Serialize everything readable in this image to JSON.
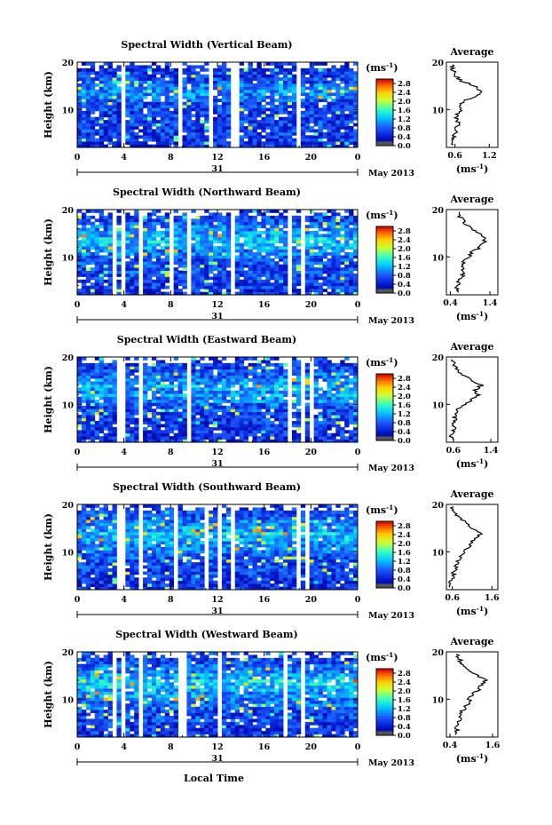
{
  "chart_data": [
    {
      "type": "heatmap",
      "title": "Spectral Width (Vertical Beam)",
      "ylabel": "Height (km)",
      "xlim": [
        0,
        24
      ],
      "ylim": [
        2,
        20
      ],
      "x_ticks": [
        "0",
        "4",
        "8",
        "12",
        "16",
        "20",
        "0"
      ],
      "y_ticks": [
        "10",
        "20"
      ],
      "date_day": "31",
      "date_label": "May 2013",
      "colorbar": {
        "unit": "(ms",
        "unit_exp": "-1",
        "unit_close": ")",
        "ticks": [
          "2.8",
          "2.4",
          "2.0",
          "1.6",
          "1.2",
          "0.8",
          "0.4",
          "0.0"
        ],
        "range": [
          0,
          3.0
        ]
      },
      "gaps": [
        [
          8.6,
          9.0
        ],
        [
          9.3,
          9.5
        ],
        [
          13.3,
          13.7
        ],
        [
          18.6,
          19.0
        ],
        [
          3.7,
          4.2
        ],
        [
          5.5,
          5.7
        ],
        [
          11.3,
          11.5
        ]
      ],
      "average": {
        "title": "Average",
        "xlabel": "(ms",
        "xlabel_exp": "-1",
        "xlabel_close": ")",
        "x_ticks": [
          "0.6",
          "1.2"
        ],
        "xlim": [
          0.45,
          1.35
        ],
        "y_ticks": [
          "10",
          "20"
        ],
        "ylim": [
          2,
          20
        ],
        "heights": [
          3,
          4,
          5,
          6,
          7,
          8,
          9,
          10,
          11,
          12,
          13,
          14,
          15,
          16,
          17,
          18,
          19
        ],
        "values": [
          0.55,
          0.58,
          0.6,
          0.63,
          0.66,
          0.62,
          0.64,
          0.7,
          0.68,
          0.8,
          1.0,
          1.05,
          0.95,
          0.72,
          0.62,
          0.58,
          0.55
        ]
      }
    },
    {
      "type": "heatmap",
      "title": "Spectral Width (Northward Beam)",
      "ylabel": "Height (km)",
      "xlim": [
        0,
        24
      ],
      "ylim": [
        2,
        20
      ],
      "x_ticks": [
        "0",
        "4",
        "8",
        "12",
        "16",
        "20",
        "0"
      ],
      "y_ticks": [
        "10",
        "20"
      ],
      "date_day": "31",
      "date_label": "May 2013",
      "colorbar": {
        "unit": "(ms",
        "unit_exp": "-1",
        "unit_close": ")",
        "ticks": [
          "2.8",
          "2.4",
          "2.0",
          "1.6",
          "1.2",
          "0.8",
          "0.4",
          "0.0"
        ],
        "range": [
          0,
          3.0
        ]
      },
      "gaps": [
        [
          3.0,
          3.3
        ],
        [
          3.6,
          4.1
        ],
        [
          5.2,
          5.5
        ],
        [
          7.9,
          8.3
        ],
        [
          9.3,
          9.6
        ],
        [
          13.2,
          13.6
        ],
        [
          18.0,
          18.3
        ],
        [
          19.2,
          19.5
        ]
      ],
      "average": {
        "title": "Average",
        "xlabel": "(ms",
        "xlabel_exp": "-1",
        "xlabel_close": ")",
        "x_ticks": [
          "0.4",
          "1.4"
        ],
        "xlim": [
          0.3,
          1.6
        ],
        "y_ticks": [
          "10",
          "20"
        ],
        "ylim": [
          2,
          20
        ],
        "heights": [
          3,
          4,
          5,
          6,
          7,
          8,
          9,
          10,
          11,
          12,
          13,
          14,
          15,
          16,
          17,
          18,
          19
        ],
        "values": [
          0.55,
          0.6,
          0.62,
          0.7,
          0.72,
          0.68,
          0.74,
          0.85,
          0.95,
          1.15,
          1.25,
          1.3,
          1.1,
          0.95,
          0.8,
          0.7,
          0.6
        ]
      }
    },
    {
      "type": "heatmap",
      "title": "Spectral Width (Eastward Beam)",
      "ylabel": "Height (km)",
      "xlim": [
        0,
        24
      ],
      "ylim": [
        2,
        20
      ],
      "x_ticks": [
        "0",
        "4",
        "8",
        "12",
        "16",
        "20",
        "0"
      ],
      "y_ticks": [
        "10",
        "20"
      ],
      "date_day": "31",
      "date_label": "May 2013",
      "colorbar": {
        "unit": "(ms",
        "unit_exp": "-1",
        "unit_close": ")",
        "ticks": [
          "2.8",
          "2.4",
          "2.0",
          "1.6",
          "1.2",
          "0.8",
          "0.4",
          "0.0"
        ],
        "range": [
          0,
          3.0
        ]
      },
      "gaps": [
        [
          3.5,
          4.0
        ],
        [
          5.3,
          5.6
        ],
        [
          9.3,
          9.6
        ],
        [
          18.0,
          18.3
        ],
        [
          19.3,
          19.6
        ],
        [
          19.9,
          20.1
        ]
      ],
      "average": {
        "title": "Average",
        "xlabel": "(ms",
        "xlabel_exp": "-1",
        "xlabel_close": ")",
        "x_ticks": [
          "0.6",
          "1.4"
        ],
        "xlim": [
          0.45,
          1.55
        ],
        "y_ticks": [
          "10",
          "20"
        ],
        "ylim": [
          2,
          20
        ],
        "heights": [
          3,
          4,
          5,
          6,
          7,
          8,
          9,
          10,
          11,
          12,
          13,
          14,
          15,
          16,
          17,
          18,
          19
        ],
        "values": [
          0.55,
          0.58,
          0.62,
          0.6,
          0.63,
          0.66,
          0.7,
          0.85,
          1.0,
          1.15,
          1.05,
          1.2,
          1.0,
          0.85,
          0.72,
          0.65,
          0.6
        ]
      }
    },
    {
      "type": "heatmap",
      "title": "Spectral Width (Southward Beam)",
      "ylabel": "Height (km)",
      "xlim": [
        0,
        24
      ],
      "ylim": [
        2,
        20
      ],
      "x_ticks": [
        "0",
        "4",
        "8",
        "12",
        "16",
        "20",
        "0"
      ],
      "y_ticks": [
        "10",
        "20"
      ],
      "date_day": "31",
      "date_label": "May 2013",
      "colorbar": {
        "unit": "(ms",
        "unit_exp": "-1",
        "unit_close": ")",
        "ticks": [
          "2.8",
          "2.4",
          "2.0",
          "1.6",
          "1.2",
          "0.8",
          "0.4",
          "0.0"
        ],
        "range": [
          0,
          3.0
        ]
      },
      "gaps": [
        [
          3.5,
          4.0
        ],
        [
          5.4,
          5.7
        ],
        [
          8.2,
          8.5
        ],
        [
          9.2,
          9.5
        ],
        [
          10.9,
          11.3
        ],
        [
          11.9,
          12.2
        ],
        [
          13.2,
          13.6
        ],
        [
          18.8,
          19.1
        ],
        [
          19.6,
          19.9
        ]
      ],
      "average": {
        "title": "Average",
        "xlabel": "(ms",
        "xlabel_exp": "-1",
        "xlabel_close": ")",
        "x_ticks": [
          "0.6",
          "1.6"
        ],
        "xlim": [
          0.45,
          1.75
        ],
        "y_ticks": [
          "10",
          "20"
        ],
        "ylim": [
          2,
          20
        ],
        "heights": [
          3,
          4,
          5,
          6,
          7,
          8,
          9,
          10,
          11,
          12,
          13,
          14,
          15,
          16,
          17,
          18,
          19
        ],
        "values": [
          0.55,
          0.58,
          0.62,
          0.65,
          0.7,
          0.72,
          0.8,
          0.9,
          1.0,
          1.1,
          1.2,
          1.35,
          1.1,
          0.95,
          0.8,
          0.7,
          0.6
        ]
      }
    },
    {
      "type": "heatmap",
      "title": "Spectral Width (Westward Beam)",
      "ylabel": "Height (km)",
      "xlabel": "Local Time",
      "xlim": [
        0,
        24
      ],
      "ylim": [
        2,
        20
      ],
      "x_ticks": [
        "0",
        "4",
        "8",
        "12",
        "16",
        "20",
        "0"
      ],
      "y_ticks": [
        "10",
        "20"
      ],
      "date_day": "31",
      "date_label": "May 2013",
      "colorbar": {
        "unit": "(ms",
        "unit_exp": "-1",
        "unit_close": ")",
        "ticks": [
          "2.8",
          "2.4",
          "2.0",
          "1.6",
          "1.2",
          "0.8",
          "0.4",
          "0.0"
        ],
        "range": [
          0,
          3.0
        ]
      },
      "gaps": [
        [
          3.1,
          3.4
        ],
        [
          3.7,
          4.1
        ],
        [
          5.3,
          5.6
        ],
        [
          8.8,
          9.2
        ],
        [
          12.0,
          12.3
        ],
        [
          17.8,
          18.1
        ],
        [
          19.2,
          19.5
        ]
      ],
      "average": {
        "title": "Average",
        "xlabel": "(ms",
        "xlabel_exp": "-1",
        "xlabel_close": ")",
        "x_ticks": [
          "0.4",
          "1.6"
        ],
        "xlim": [
          0.3,
          1.75
        ],
        "y_ticks": [
          "10",
          "20"
        ],
        "ylim": [
          2,
          20
        ],
        "heights": [
          3,
          4,
          5,
          6,
          7,
          8,
          9,
          10,
          11,
          12,
          13,
          14,
          15,
          16,
          17,
          18,
          19
        ],
        "values": [
          0.6,
          0.58,
          0.66,
          0.72,
          0.68,
          0.8,
          0.9,
          0.95,
          1.05,
          1.2,
          1.3,
          1.4,
          1.15,
          0.95,
          0.8,
          0.7,
          0.62
        ]
      }
    }
  ]
}
